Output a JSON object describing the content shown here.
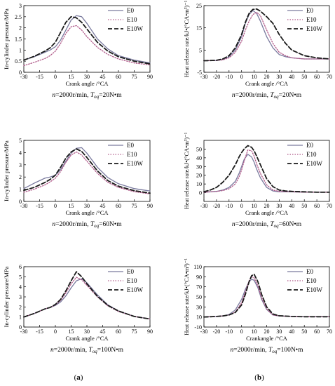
{
  "figure": {
    "panel_labels": [
      {
        "open": "(",
        "letter": "a",
        "close": ")"
      },
      {
        "open": "(",
        "letter": "b",
        "close": ")"
      }
    ]
  },
  "styles": {
    "E0": {
      "color": "#7a7a9e",
      "dash": "",
      "width": 1.3
    },
    "E10": {
      "color": "#b05a8a",
      "dash": "1.5 2",
      "width": 1.3
    },
    "E10W": {
      "color": "#1a1a1a",
      "dash": "6 3",
      "width": 1.8
    }
  },
  "chart_data": [
    {
      "type": "line",
      "column": 0,
      "row": 0,
      "ylabel": "In-cylinder pressure/MPa",
      "xlabel": "Crank angle /°CA",
      "xlim": [
        -30,
        90
      ],
      "xticks": [
        -30,
        -15,
        0,
        15,
        30,
        45,
        60,
        75,
        90
      ],
      "ylim": [
        0,
        3
      ],
      "yticks": [
        0,
        0.5,
        1,
        1.5,
        2,
        2.5,
        3
      ],
      "ytick_labels": [
        "0",
        "0.5",
        "1",
        "1.5",
        "2",
        "2.5",
        "3"
      ],
      "legend_position": "top-right",
      "condition": {
        "n_var": "n",
        "n_text": "=2000r/min, ",
        "tq_var": "T",
        "tq_sub": "oq",
        "tq_text": "=20N•m"
      },
      "series": [
        {
          "name": "E0",
          "x": [
            -30,
            -20,
            -10,
            -5,
            0,
            5,
            10,
            15,
            20,
            25,
            30,
            40,
            50,
            60,
            75,
            90
          ],
          "y": [
            0.55,
            0.7,
            0.9,
            1.0,
            1.15,
            1.45,
            1.9,
            2.35,
            2.55,
            2.5,
            2.2,
            1.5,
            1.05,
            0.75,
            0.55,
            0.42
          ]
        },
        {
          "name": "E10",
          "x": [
            -30,
            -20,
            -10,
            -5,
            0,
            5,
            10,
            15,
            20,
            25,
            30,
            40,
            50,
            60,
            75,
            90
          ],
          "y": [
            0.3,
            0.45,
            0.62,
            0.75,
            0.95,
            1.3,
            1.75,
            2.05,
            2.1,
            1.9,
            1.6,
            1.12,
            0.8,
            0.6,
            0.42,
            0.33
          ]
        },
        {
          "name": "E10W",
          "x": [
            -30,
            -20,
            -10,
            -5,
            0,
            5,
            10,
            15,
            20,
            25,
            30,
            40,
            50,
            60,
            75,
            90
          ],
          "y": [
            0.55,
            0.72,
            0.95,
            1.1,
            1.35,
            1.8,
            2.25,
            2.5,
            2.45,
            2.25,
            1.95,
            1.35,
            0.95,
            0.7,
            0.5,
            0.38
          ]
        }
      ]
    },
    {
      "type": "line",
      "column": 1,
      "row": 0,
      "ylabel": "Heat release rate/kJ•(°CA•m³)⁻¹",
      "xlabel": "Crank angle /°CA",
      "xlim": [
        -30,
        70
      ],
      "xticks": [
        -30,
        -20,
        -10,
        0,
        10,
        20,
        30,
        40,
        50,
        60,
        70
      ],
      "ylim": [
        -5,
        25
      ],
      "yticks": [
        -5,
        5,
        15,
        25
      ],
      "ytick_labels": [
        "-5",
        "5",
        "15",
        "25"
      ],
      "legend_position": "top-right",
      "condition": {
        "n_var": "n",
        "n_text": "=2000r/min, ",
        "tq_var": "T",
        "tq_sub": "oq",
        "tq_text": "=20N•m"
      },
      "series": [
        {
          "name": "E0",
          "x": [
            -30,
            -20,
            -15,
            -10,
            -5,
            0,
            3,
            6,
            9,
            12,
            15,
            20,
            25,
            30,
            35,
            40,
            50,
            60,
            70
          ],
          "y": [
            0.2,
            0.3,
            0.8,
            2,
            5,
            11,
            17,
            21,
            22.8,
            21.5,
            18,
            11,
            6,
            3,
            2,
            1.5,
            1,
            1,
            1
          ]
        },
        {
          "name": "E10",
          "x": [
            -30,
            -20,
            -15,
            -10,
            -5,
            0,
            3,
            6,
            9,
            12,
            15,
            20,
            25,
            30,
            35,
            40,
            50,
            60,
            70
          ],
          "y": [
            0.2,
            0.3,
            0.6,
            1.5,
            4,
            9,
            14,
            18,
            21,
            22,
            20.5,
            14,
            8,
            4,
            2.5,
            1.5,
            1,
            1,
            1
          ]
        },
        {
          "name": "E10W",
          "x": [
            -30,
            -20,
            -15,
            -10,
            -5,
            0,
            3,
            6,
            9,
            12,
            15,
            20,
            25,
            30,
            35,
            40,
            50,
            60,
            70
          ],
          "y": [
            0.2,
            0.4,
            1,
            2.5,
            6,
            12,
            17.5,
            21.5,
            23.3,
            23.5,
            22.5,
            20,
            17,
            12,
            8,
            5,
            2.5,
            1.5,
            1
          ]
        }
      ]
    },
    {
      "type": "line",
      "column": 0,
      "row": 1,
      "ylabel": "In-cylinder pressure/MPa",
      "xlabel": "Crank angle /°CA",
      "xlim": [
        -30,
        90
      ],
      "xticks": [
        -30,
        -15,
        0,
        15,
        30,
        45,
        60,
        75,
        90
      ],
      "ylim": [
        0,
        5
      ],
      "yticks": [
        0,
        1,
        2,
        3,
        4,
        5
      ],
      "ytick_labels": [
        "0",
        "1",
        "2",
        "3",
        "4",
        "5"
      ],
      "legend_position": "top-right",
      "condition": {
        "n_var": "n",
        "n_text": "=2000r/min, ",
        "tq_var": "T",
        "tq_sub": "oq",
        "tq_text": "=60N•m"
      },
      "series": [
        {
          "name": "E0",
          "x": [
            -30,
            -20,
            -10,
            -5,
            0,
            5,
            10,
            15,
            20,
            25,
            30,
            40,
            50,
            60,
            75,
            90
          ],
          "y": [
            1.05,
            1.5,
            1.9,
            2.0,
            2.15,
            2.6,
            3.3,
            3.95,
            4.35,
            4.4,
            3.95,
            2.8,
            1.95,
            1.45,
            1.05,
            0.85
          ]
        },
        {
          "name": "E10",
          "x": [
            -30,
            -20,
            -10,
            -5,
            0,
            5,
            10,
            15,
            20,
            25,
            30,
            40,
            50,
            60,
            75,
            90
          ],
          "y": [
            0.75,
            1.0,
            1.35,
            1.6,
            1.9,
            2.45,
            3.2,
            3.8,
            4.05,
            3.8,
            3.3,
            2.3,
            1.55,
            1.15,
            0.8,
            0.62
          ]
        },
        {
          "name": "E10W",
          "x": [
            -30,
            -20,
            -10,
            -5,
            0,
            5,
            10,
            15,
            20,
            25,
            30,
            40,
            50,
            60,
            75,
            90
          ],
          "y": [
            0.9,
            1.15,
            1.55,
            1.8,
            2.15,
            2.8,
            3.55,
            4.05,
            4.3,
            4.1,
            3.6,
            2.5,
            1.7,
            1.25,
            0.88,
            0.68
          ]
        }
      ]
    },
    {
      "type": "line",
      "column": 1,
      "row": 1,
      "ylabel": "Heat release rate/kJ•(°CA•m³)⁻¹",
      "xlabel": "Crank angle /°CA",
      "xlim": [
        -30,
        70
      ],
      "xticks": [
        -30,
        -20,
        -10,
        0,
        10,
        20,
        30,
        40,
        50,
        60,
        70
      ],
      "ylim": [
        -10,
        60
      ],
      "yticks": [
        0,
        10,
        20,
        30,
        40,
        50
      ],
      "ytick_labels": [
        "0",
        "10",
        "20",
        "30",
        "40",
        "50"
      ],
      "legend_position": "top-right",
      "condition": {
        "n_var": "n",
        "n_text": "=2000r/min, ",
        "tq_var": "T",
        "tq_sub": "oq",
        "tq_text": "=60N•m"
      },
      "series": [
        {
          "name": "E0",
          "x": [
            -30,
            -25,
            -20,
            -15,
            -10,
            -5,
            -2,
            0,
            2,
            5,
            8,
            10,
            12,
            15,
            20,
            25,
            30,
            35,
            40,
            50,
            60,
            70
          ],
          "y": [
            0.5,
            1,
            1.5,
            3,
            6,
            13,
            22,
            30,
            38,
            44,
            41,
            35,
            27,
            17,
            6,
            2,
            1,
            1,
            1,
            0.5,
            0.5,
            0.5
          ]
        },
        {
          "name": "E10",
          "x": [
            -30,
            -25,
            -20,
            -15,
            -10,
            -5,
            -2,
            0,
            2,
            5,
            8,
            10,
            12,
            15,
            20,
            25,
            30,
            35,
            40,
            50,
            60,
            70
          ],
          "y": [
            0.5,
            1,
            1.5,
            2.5,
            4.5,
            10,
            18,
            26,
            36,
            49,
            48,
            42,
            33,
            22,
            9,
            3,
            1.5,
            1,
            1,
            0.5,
            0.5,
            0.5
          ]
        },
        {
          "name": "E10W",
          "x": [
            -30,
            -25,
            -20,
            -15,
            -10,
            -5,
            -2,
            0,
            2,
            5,
            8,
            10,
            12,
            15,
            20,
            25,
            30,
            35,
            40,
            50,
            60,
            70
          ],
          "y": [
            1,
            3,
            6,
            12,
            20,
            32,
            41,
            46,
            50,
            54,
            52,
            48,
            42,
            32,
            16,
            7,
            3,
            2,
            1.5,
            1,
            0.5,
            0.5
          ]
        }
      ]
    },
    {
      "type": "line",
      "column": 0,
      "row": 2,
      "ylabel": "In-cylinder pressure/MPa",
      "xlabel": "Crank angle /°CA",
      "xlim": [
        -30,
        90
      ],
      "xticks": [
        -30,
        -15,
        0,
        15,
        30,
        45,
        60,
        75,
        90
      ],
      "ylim": [
        0,
        6
      ],
      "yticks": [
        0,
        1,
        2,
        3,
        4,
        5,
        6
      ],
      "ytick_labels": [
        "0",
        "1",
        "2",
        "3",
        "4",
        "5",
        "6"
      ],
      "legend_position": "top-right",
      "condition": {
        "n_var": "n",
        "n_text": "=2000r/min, ",
        "tq_var": "T",
        "tq_sub": "oq",
        "tq_text": "=100N•m"
      },
      "series": [
        {
          "name": "E0",
          "x": [
            -30,
            -20,
            -10,
            -5,
            0,
            5,
            10,
            15,
            20,
            25,
            30,
            40,
            50,
            60,
            75,
            90
          ],
          "y": [
            1.0,
            1.35,
            1.8,
            1.95,
            2.15,
            2.5,
            3.1,
            3.9,
            4.6,
            4.8,
            4.4,
            3.2,
            2.2,
            1.6,
            1.05,
            0.8
          ]
        },
        {
          "name": "E10",
          "x": [
            -30,
            -20,
            -10,
            -5,
            0,
            5,
            10,
            15,
            20,
            25,
            30,
            40,
            50,
            60,
            75,
            90
          ],
          "y": [
            1.0,
            1.35,
            1.8,
            1.95,
            2.2,
            2.65,
            3.4,
            4.3,
            4.95,
            4.7,
            4.15,
            3.0,
            2.1,
            1.55,
            1.05,
            0.8
          ]
        },
        {
          "name": "E10W",
          "x": [
            -30,
            -20,
            -10,
            -5,
            0,
            5,
            10,
            15,
            20,
            25,
            30,
            40,
            50,
            60,
            75,
            90
          ],
          "y": [
            1.0,
            1.35,
            1.8,
            1.95,
            2.25,
            2.75,
            3.6,
            4.6,
            5.5,
            5.0,
            4.3,
            3.05,
            2.15,
            1.6,
            1.05,
            0.8
          ]
        }
      ]
    },
    {
      "type": "line",
      "column": 1,
      "row": 2,
      "ylabel": "Heat release rate/kJ•(°CA•m³)⁻¹",
      "xlabel": "Crankangle /°CA",
      "xlim": [
        -30,
        70
      ],
      "xticks": [
        -30,
        -20,
        -10,
        0,
        10,
        20,
        30,
        40,
        50,
        60,
        70
      ],
      "ylim": [
        -10,
        110
      ],
      "yticks": [
        -10,
        10,
        30,
        50,
        70,
        90,
        110
      ],
      "ytick_labels": [
        "-10",
        "10",
        "30",
        "50",
        "70",
        "90",
        "110"
      ],
      "legend_position": "top-right",
      "condition": {
        "n_var": "n",
        "n_text": "=2000r/min, ",
        "tq_var": "T",
        "tq_sub": "oq",
        "tq_text": "=100N•m"
      },
      "series": [
        {
          "name": "E0",
          "x": [
            -30,
            -25,
            -20,
            -15,
            -10,
            -5,
            0,
            3,
            6,
            8,
            10,
            13,
            16,
            20,
            25,
            30,
            40,
            50,
            60,
            70
          ],
          "y": [
            10,
            10.5,
            11,
            12,
            15,
            24,
            45,
            65,
            80,
            85,
            83,
            68,
            45,
            25,
            14,
            12,
            11,
            10.5,
            10.5,
            10.5
          ]
        },
        {
          "name": "E10",
          "x": [
            -30,
            -25,
            -20,
            -15,
            -10,
            -5,
            0,
            3,
            6,
            8,
            10,
            13,
            16,
            20,
            25,
            30,
            40,
            50,
            60,
            70
          ],
          "y": [
            10,
            10.5,
            11,
            12,
            14,
            20,
            38,
            60,
            82,
            90,
            88,
            72,
            48,
            26,
            14,
            12,
            11,
            10.5,
            10.5,
            10.5
          ]
        },
        {
          "name": "E10W",
          "x": [
            -30,
            -25,
            -20,
            -15,
            -10,
            -5,
            0,
            3,
            6,
            8,
            10,
            13,
            16,
            20,
            25,
            30,
            40,
            50,
            60,
            70
          ],
          "y": [
            10,
            10.5,
            11,
            12,
            14,
            19,
            34,
            55,
            80,
            92,
            95,
            80,
            55,
            30,
            16,
            12.5,
            11,
            10.5,
            10.5,
            10.5
          ]
        }
      ]
    }
  ]
}
